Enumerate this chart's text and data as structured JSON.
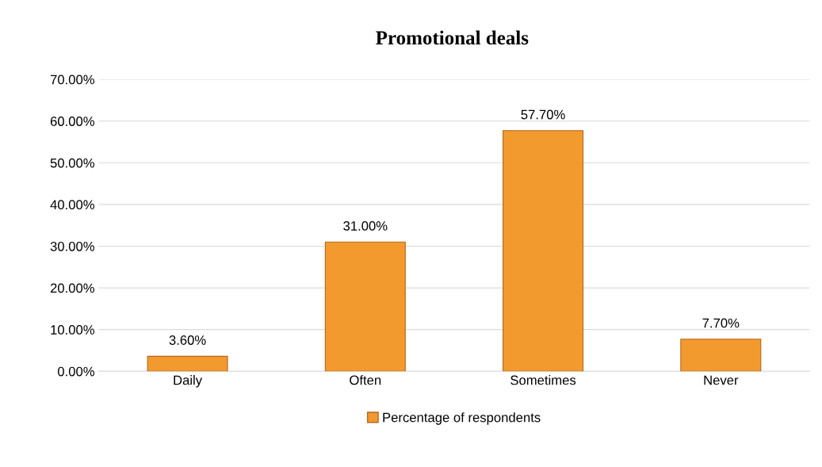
{
  "chart_data": {
    "type": "bar",
    "title": "Promotional deals",
    "categories": [
      "Daily",
      "Often",
      "Sometimes",
      "Never"
    ],
    "series": [
      {
        "name": "Percentage of respondents",
        "color": "#f39a2e",
        "values": [
          3.6,
          31.0,
          57.7,
          7.7
        ],
        "value_labels": [
          "3.60%",
          "31.00%",
          "57.70%",
          "7.70%"
        ]
      }
    ],
    "ylim": [
      0,
      70
    ],
    "yticks": [
      {
        "value": 0,
        "label": "0.00%"
      },
      {
        "value": 10,
        "label": "10.00%"
      },
      {
        "value": 20,
        "label": "20.00%"
      },
      {
        "value": 30,
        "label": "30.00%"
      },
      {
        "value": 40,
        "label": "40.00%"
      },
      {
        "value": 50,
        "label": "50.00%"
      },
      {
        "value": 60,
        "label": "60.00%"
      },
      {
        "value": 70,
        "label": "70.00%"
      }
    ],
    "grid": "y",
    "legend": "bottom"
  }
}
